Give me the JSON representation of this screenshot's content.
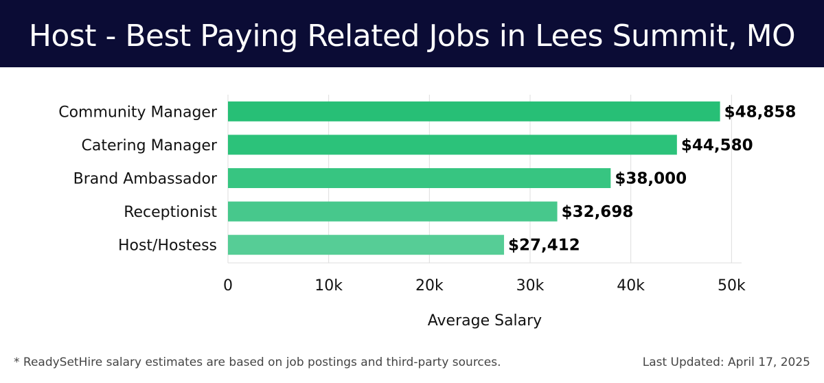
{
  "header": {
    "title": "Host - Best Paying Related Jobs in Lees Summit, MO"
  },
  "footer": {
    "note": "* ReadySetHire salary estimates are based on job postings and third-party sources.",
    "last_updated": "Last Updated: April 17, 2025"
  },
  "colors": {
    "header_bg": "#0b0c35",
    "bar_colors": [
      "#27bf76",
      "#2cc27a",
      "#37c581",
      "#47c88c",
      "#56cd96"
    ],
    "grid": "#dddddd",
    "text": "#111111"
  },
  "chart_data": {
    "type": "bar",
    "orientation": "horizontal",
    "categories": [
      "Community Manager",
      "Catering Manager",
      "Brand Ambassador",
      "Receptionist",
      "Host/Hostess"
    ],
    "values": [
      48858,
      44580,
      38000,
      32698,
      27412
    ],
    "value_labels": [
      "$48,858",
      "$44,580",
      "$38,000",
      "$32,698",
      "$27,412"
    ],
    "xlabel": "Average Salary",
    "ylabel": "",
    "xlim": [
      0,
      51000
    ],
    "xticks": [
      0,
      10000,
      20000,
      30000,
      40000,
      50000
    ],
    "xtick_labels": [
      "0",
      "10k",
      "20k",
      "30k",
      "40k",
      "50k"
    ],
    "grid": true
  }
}
